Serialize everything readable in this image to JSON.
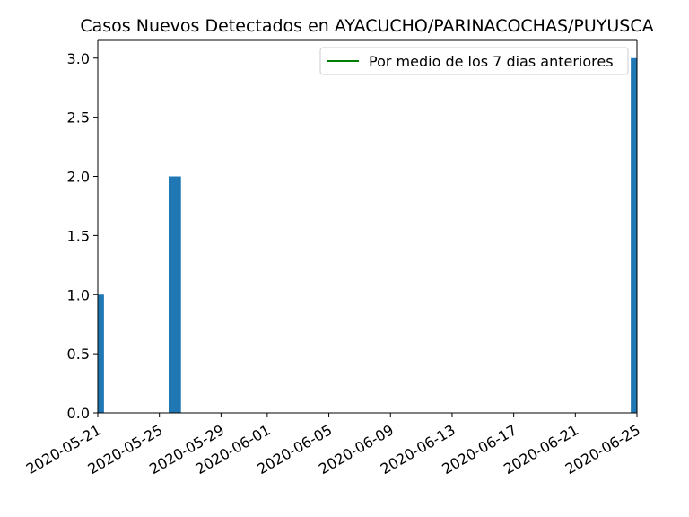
{
  "chart_data": {
    "type": "bar",
    "title": "Casos Nuevos Detectados en AYACUCHO/PARINACOCHAS/PUYUSCA",
    "xlabel": "",
    "ylabel": "",
    "x_range": [
      "2020-05-21",
      "2020-06-25"
    ],
    "ylim": [
      0,
      3.15
    ],
    "yticks": [
      0.0,
      0.5,
      1.0,
      1.5,
      2.0,
      2.5,
      3.0
    ],
    "ytick_labels": [
      "0.0",
      "0.5",
      "1.0",
      "1.5",
      "2.0",
      "2.5",
      "3.0"
    ],
    "xticks": [
      "2020-05-21",
      "2020-05-25",
      "2020-05-29",
      "2020-06-01",
      "2020-06-05",
      "2020-06-09",
      "2020-06-13",
      "2020-06-17",
      "2020-06-21",
      "2020-06-25"
    ],
    "bars": [
      {
        "date": "2020-05-21",
        "value": 1
      },
      {
        "date": "2020-05-26",
        "value": 2
      },
      {
        "date": "2020-06-25",
        "value": 3
      }
    ],
    "bar_color": "#1f77b4",
    "legend": {
      "placement": "upper-right",
      "entries": [
        {
          "label": "Por medio de los 7 dias anteriores",
          "color": "#008000",
          "kind": "line"
        }
      ]
    },
    "grid": false
  }
}
